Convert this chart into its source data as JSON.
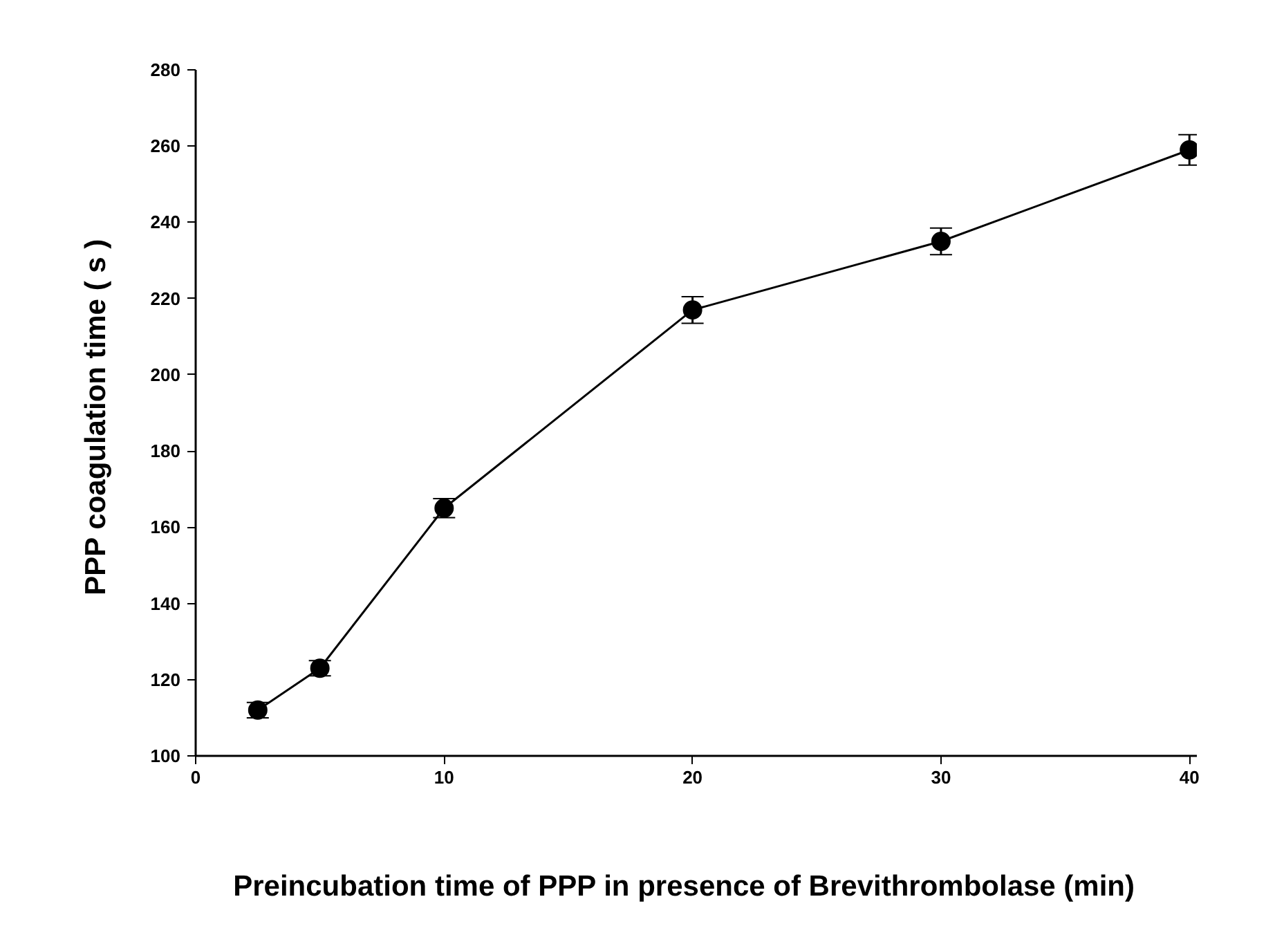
{
  "chart_data": {
    "type": "line",
    "xlabel": "Preincubation  time of  PPP in presence of Brevithrombolase  (min)",
    "ylabel": "PPP coagulation  time ( s )",
    "x": [
      2.5,
      5,
      10,
      20,
      30,
      40
    ],
    "series": [
      {
        "color": "#000000",
        "values": [
          112,
          123,
          165,
          217,
          235,
          259
        ],
        "errors": [
          2,
          2,
          2.5,
          3.5,
          3.5,
          4
        ]
      }
    ],
    "xlim": [
      0,
      40.3
    ],
    "ylim": [
      100,
      280
    ],
    "xticks": [
      0,
      10,
      20,
      30,
      40
    ],
    "yticks": [
      100,
      120,
      140,
      160,
      180,
      200,
      220,
      240,
      260,
      280
    ],
    "marker": "circle",
    "line_style": "solid",
    "grid": false
  }
}
